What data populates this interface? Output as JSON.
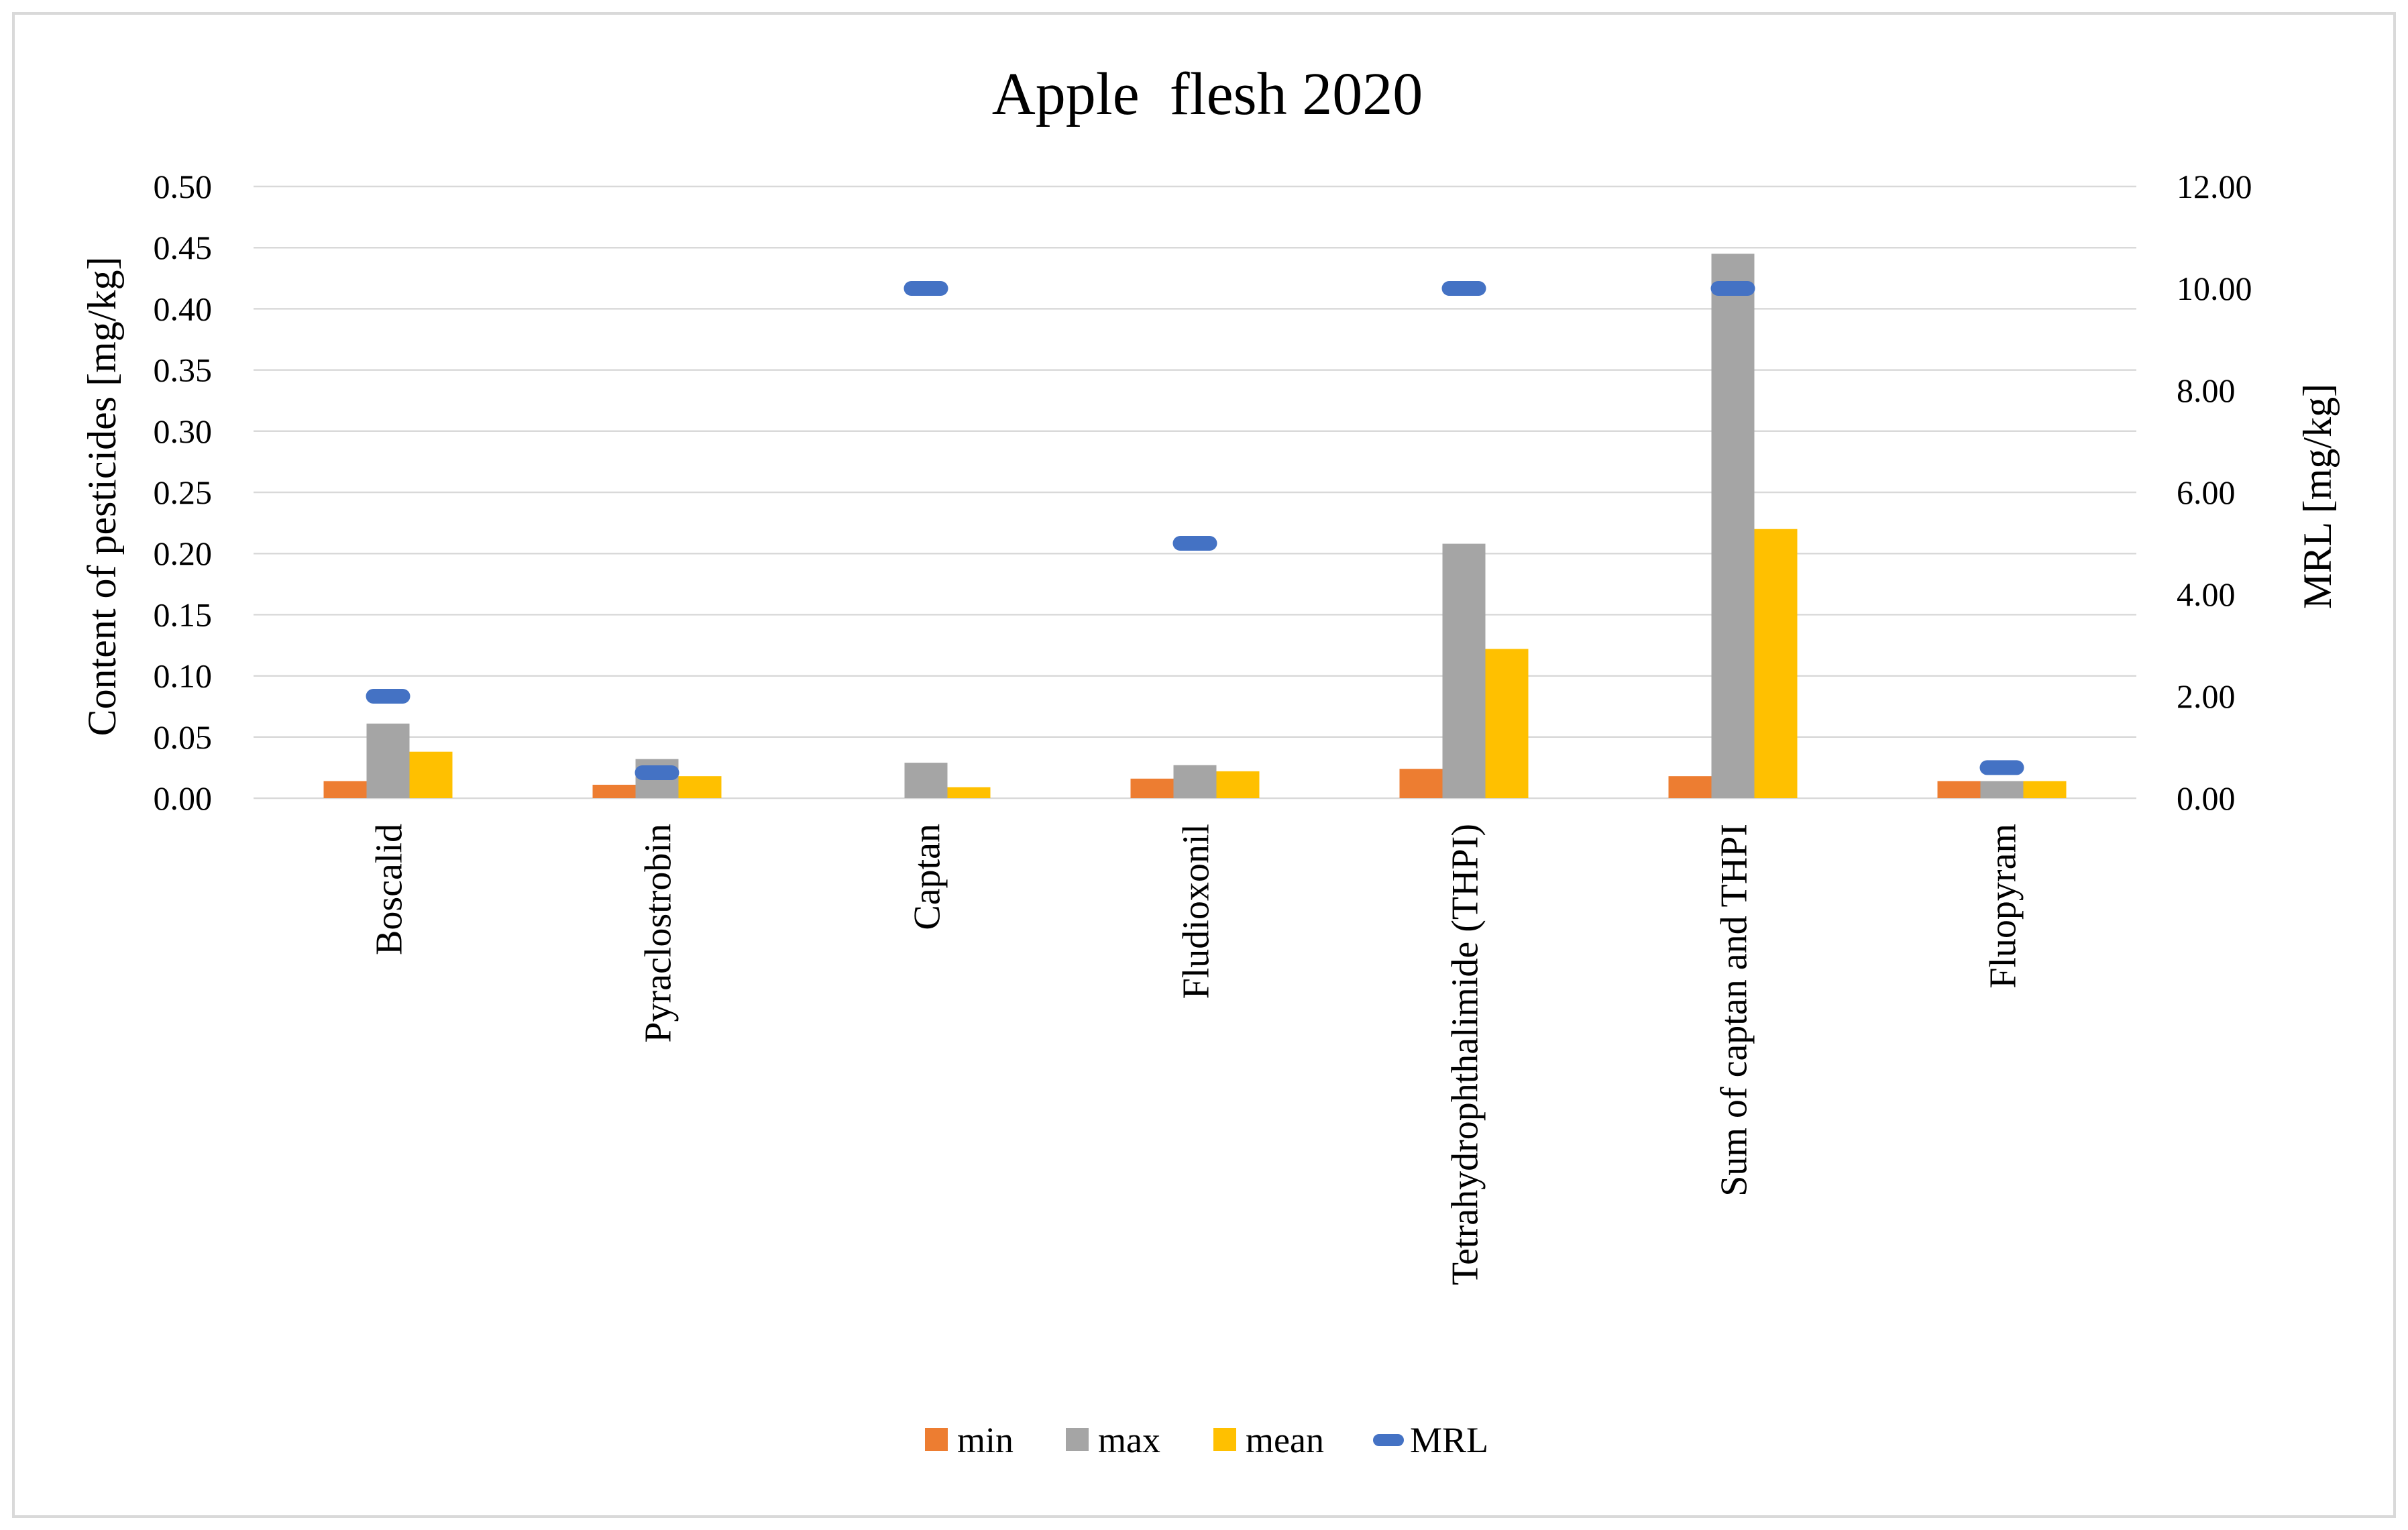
{
  "chart_data": {
    "type": "bar",
    "title": "Apple  flesh 2020",
    "ylabel": "Content of pesticides [mg/kg]",
    "y2label": "MRL [mg/kg]",
    "ylim": [
      0,
      0.5
    ],
    "y2lim": [
      0,
      12
    ],
    "yticks": [
      "0.00",
      "0.05",
      "0.10",
      "0.15",
      "0.20",
      "0.25",
      "0.30",
      "0.35",
      "0.40",
      "0.45",
      "0.50"
    ],
    "y2ticks": [
      "0.00",
      "2.00",
      "4.00",
      "6.00",
      "8.00",
      "10.00",
      "12.00"
    ],
    "grid": true,
    "legend_position": "bottom",
    "categories": [
      "Boscalid",
      "Pyraclostrobin",
      "Captan",
      "Fludioxonil",
      "Tetrahydrophthalimide (THPI)",
      "Sum of captan and THPI",
      "Fluopyram"
    ],
    "series": [
      {
        "name": "min",
        "axis": "left",
        "color": "#ED7D31",
        "values": [
          0.014,
          0.011,
          0,
          0.016,
          0.024,
          0.018,
          0.014
        ]
      },
      {
        "name": "max",
        "axis": "left",
        "color": "#A5A5A5",
        "values": [
          0.061,
          0.032,
          0.029,
          0.027,
          0.208,
          0.445,
          0.014
        ]
      },
      {
        "name": "mean",
        "axis": "left",
        "color": "#FFC000",
        "values": [
          0.038,
          0.018,
          0.009,
          0.022,
          0.122,
          0.22,
          0.014
        ]
      },
      {
        "name": "MRL",
        "axis": "right",
        "color": "#4472C4",
        "marker": "dash",
        "values": [
          2.0,
          0.5,
          10.0,
          5.0,
          10.0,
          10.0,
          0.6
        ]
      }
    ]
  }
}
